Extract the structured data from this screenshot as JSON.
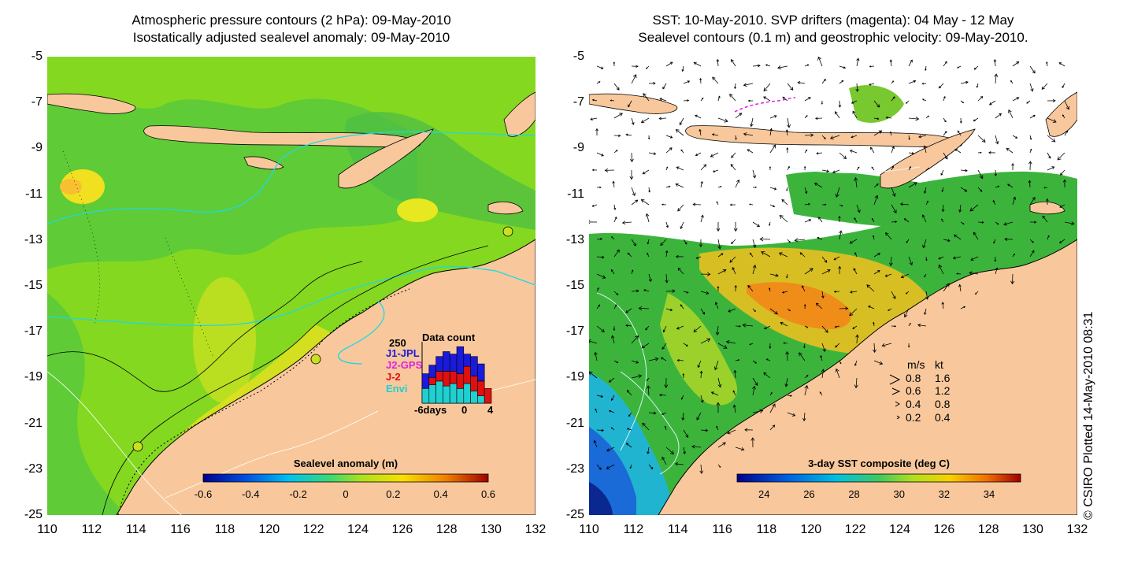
{
  "left_panel": {
    "title_line1": "Atmospheric pressure contours (2 hPa): 09-May-2010",
    "title_line2": "Isostatically adjusted sealevel anomaly: 09-May-2010",
    "colorbar": {
      "title": "Sealevel anomaly (m)",
      "ticks": [
        "-0.6",
        "-0.4",
        "-0.2",
        "0",
        "0.2",
        "0.4",
        "0.6"
      ],
      "range": [
        -0.6,
        0.6
      ]
    },
    "data_count": {
      "title": "Data count",
      "ymax_label": "250",
      "missions": [
        {
          "name": "J1-JPL",
          "color": "#1a1adb"
        },
        {
          "name": "J2-GPS",
          "color": "#e020e0"
        },
        {
          "name": "J-2",
          "color": "#e01010"
        },
        {
          "name": "Envi",
          "color": "#20d0d0"
        }
      ],
      "x_label_left": "-6days",
      "x_label_mid": "0",
      "x_label_right": "4",
      "bars": [
        {
          "day": -6,
          "envi": 60,
          "j2": 0,
          "j1": 60
        },
        {
          "day": -5,
          "envi": 75,
          "j2": 30,
          "j1": 50
        },
        {
          "day": -4,
          "envi": 90,
          "j2": 40,
          "j1": 60
        },
        {
          "day": -3,
          "envi": 70,
          "j2": 60,
          "j1": 80
        },
        {
          "day": -2,
          "envi": 80,
          "j2": 50,
          "j1": 70
        },
        {
          "day": -1,
          "envi": 60,
          "j2": 60,
          "j1": 110
        },
        {
          "day": 0,
          "envi": 80,
          "j2": 70,
          "j1": 50
        },
        {
          "day": 1,
          "envi": 50,
          "j2": 60,
          "j1": 80
        },
        {
          "day": 2,
          "envi": 30,
          "j2": 60,
          "j1": 70
        },
        {
          "day": 3,
          "envi": 0,
          "j2": 60,
          "j1": 0
        }
      ]
    }
  },
  "right_panel": {
    "title_line1": "SST: 10-May-2010. SVP drifters (magenta): 04 May - 12 May",
    "title_line2": "Sealevel contours (0.1 m) and geostrophic velocity: 09-May-2010.",
    "colorbar": {
      "title": "3-day SST composite (deg C)",
      "ticks": [
        "24",
        "26",
        "28",
        "30",
        "32",
        "34"
      ],
      "range": [
        22.8,
        35.4
      ]
    },
    "velocity_legend": {
      "header_ms": "m/s",
      "header_kt": "kt",
      "rows": [
        {
          "ms": "0.8",
          "kt": "1.6"
        },
        {
          "ms": "0.6",
          "kt": "1.2"
        },
        {
          "ms": "0.4",
          "kt": "0.8"
        },
        {
          "ms": "0.2",
          "kt": "0.4"
        }
      ]
    },
    "copyright": "© CSIRO Plotted 14-May-2010 08:31"
  },
  "axes": {
    "lat_ticks": [
      "-5",
      "-7",
      "-9",
      "-11",
      "-13",
      "-15",
      "-17",
      "-19",
      "-21",
      "-23",
      "-25"
    ],
    "lon_ticks": [
      "110",
      "112",
      "114",
      "116",
      "118",
      "120",
      "122",
      "124",
      "126",
      "128",
      "130",
      "132"
    ]
  },
  "colors": {
    "land": "#f8c89c",
    "ocean_left": "#7ed820",
    "ocean_right": "#3cb43c",
    "warm_sst": "#f0a020",
    "cold_sst": "#1a5ad8",
    "contour_cyan": "#20d8e0"
  }
}
